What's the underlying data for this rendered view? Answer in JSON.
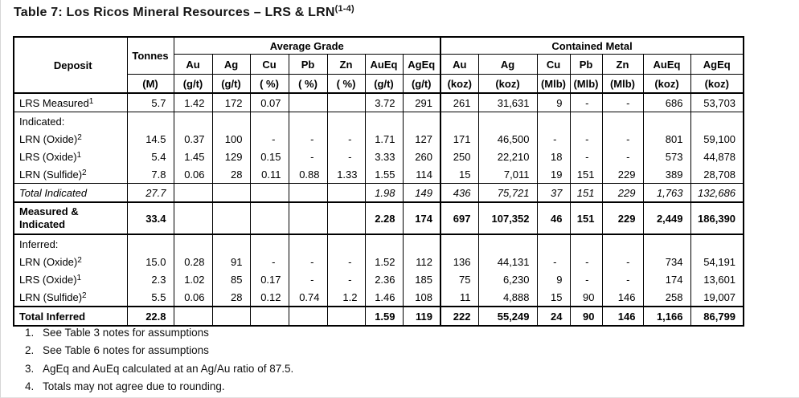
{
  "page": {
    "title_main": "Table 7: Los Ricos Mineral Resources – LRS & LRN",
    "title_sup": "(1-4)"
  },
  "table": {
    "header": {
      "deposit": "Deposit",
      "tonnes": "Tonnes",
      "tonnes_unit": "(M)",
      "group_grade": "Average Grade",
      "group_metal": "Contained Metal",
      "grade_cols": [
        {
          "el": "Au",
          "unit": "(g/t)"
        },
        {
          "el": "Ag",
          "unit": "(g/t)"
        },
        {
          "el": "Cu",
          "unit": "( %)"
        },
        {
          "el": "Pb",
          "unit": "( %)"
        },
        {
          "el": "Zn",
          "unit": "( %)"
        },
        {
          "el": "AuEq",
          "unit": "(g/t)"
        },
        {
          "el": "AgEq",
          "unit": "(g/t)"
        }
      ],
      "metal_cols": [
        {
          "el": "Au",
          "unit": "(koz)"
        },
        {
          "el": "Ag",
          "unit": "(koz)"
        },
        {
          "el": "Cu",
          "unit": "(Mlb)"
        },
        {
          "el": "Pb",
          "unit": "(Mlb)"
        },
        {
          "el": "Zn",
          "unit": "(Mlb)"
        },
        {
          "el": "AuEq",
          "unit": "(koz)"
        },
        {
          "el": "AgEq",
          "unit": "(koz)"
        }
      ]
    },
    "rows": [
      {
        "label": "LRS Measured",
        "sup": "1",
        "style": "normal",
        "border": "bb1",
        "values": [
          "5.7",
          "1.42",
          "172",
          "0.07",
          "",
          "",
          "3.72",
          "291",
          "261",
          "31,631",
          "9",
          "-",
          "-",
          "686",
          "53,703"
        ]
      },
      {
        "label": "Indicated:",
        "sup": "",
        "style": "normal",
        "border": "",
        "values": [
          "",
          "",
          "",
          "",
          "",
          "",
          "",
          "",
          "",
          "",
          "",
          "",
          "",
          "",
          ""
        ]
      },
      {
        "label": "LRN (Oxide)",
        "sup": "2",
        "style": "normal",
        "border": "",
        "values": [
          "14.5",
          "0.37",
          "100",
          "-",
          "-",
          "-",
          "1.71",
          "127",
          "171",
          "46,500",
          "-",
          "-",
          "-",
          "801",
          "59,100"
        ]
      },
      {
        "label": "LRS (Oxide)",
        "sup": "1",
        "style": "normal",
        "border": "",
        "values": [
          "5.4",
          "1.45",
          "129",
          "0.15",
          "-",
          "-",
          "3.33",
          "260",
          "250",
          "22,210",
          "18",
          "-",
          "-",
          "573",
          "44,878"
        ]
      },
      {
        "label": "LRN (Sulfide)",
        "sup": "2",
        "style": "normal",
        "border": "",
        "values": [
          "7.8",
          "0.06",
          "28",
          "0.11",
          "0.88",
          "1.33",
          "1.55",
          "114",
          "15",
          "7,011",
          "19",
          "151",
          "229",
          "389",
          "28,708"
        ]
      },
      {
        "label": "Total Indicated",
        "sup": "",
        "style": "italic",
        "border": "bt1 bb2",
        "values": [
          "27.7",
          "",
          "",
          "",
          "",
          "",
          "1.98",
          "149",
          "436",
          "75,721",
          "37",
          "151",
          "229",
          "1,763",
          "132,686"
        ]
      },
      {
        "label": "Measured & Indicated",
        "sup": "",
        "style": "bold",
        "border": "bb2",
        "two_line": true,
        "values": [
          "33.4",
          "",
          "",
          "",
          "",
          "",
          "2.28",
          "174",
          "697",
          "107,352",
          "46",
          "151",
          "229",
          "2,449",
          "186,390"
        ]
      },
      {
        "label": "Inferred:",
        "sup": "",
        "style": "normal",
        "border": "",
        "values": [
          "",
          "",
          "",
          "",
          "",
          "",
          "",
          "",
          "",
          "",
          "",
          "",
          "",
          "",
          ""
        ]
      },
      {
        "label": "LRN (Oxide)",
        "sup": "2",
        "style": "normal",
        "border": "",
        "values": [
          "15.0",
          "0.28",
          "91",
          "-",
          "-",
          "-",
          "1.52",
          "112",
          "136",
          "44,131",
          "-",
          "-",
          "-",
          "734",
          "54,191"
        ]
      },
      {
        "label": "LRS (Oxide)",
        "sup": "1",
        "style": "normal",
        "border": "",
        "values": [
          "2.3",
          "1.02",
          "85",
          "0.17",
          "-",
          "-",
          "2.36",
          "185",
          "75",
          "6,230",
          "9",
          "-",
          "-",
          "174",
          "13,601"
        ]
      },
      {
        "label": "LRN (Sulfide)",
        "sup": "2",
        "style": "normal",
        "border": "",
        "values": [
          "5.5",
          "0.06",
          "28",
          "0.12",
          "0.74",
          "1.2",
          "1.46",
          "108",
          "11",
          "4,888",
          "15",
          "90",
          "146",
          "258",
          "19,007"
        ]
      },
      {
        "label": "Total Inferred",
        "sup": "",
        "style": "bold",
        "border": "bt2",
        "values": [
          "22.8",
          "",
          "",
          "",
          "",
          "",
          "1.59",
          "119",
          "222",
          "55,249",
          "24",
          "90",
          "146",
          "1,166",
          "86,799"
        ]
      }
    ]
  },
  "footnotes": [
    {
      "num": "1.",
      "text": "See Table 3 notes for assumptions"
    },
    {
      "num": "2.",
      "text": "See Table 6 notes for assumptions"
    },
    {
      "num": "3.",
      "text": "AgEq and AuEq calculated at an Ag/Au ratio of 87.5."
    },
    {
      "num": "4.",
      "text": "Totals may not agree due to rounding."
    }
  ]
}
